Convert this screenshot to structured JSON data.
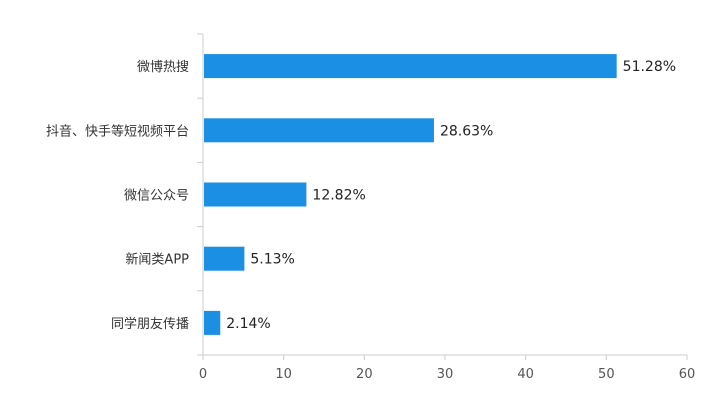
{
  "chart_data": {
    "type": "bar",
    "orientation": "horizontal",
    "title": "",
    "xlabel": "",
    "ylabel": "",
    "categories": [
      "微博热搜",
      "抖音、快手等短视频平台",
      "微信公众号",
      "新闻类APP",
      "同学朋友传播"
    ],
    "values": [
      51.28,
      28.63,
      12.82,
      5.13,
      2.14
    ],
    "value_labels": [
      "51.28%",
      "28.63%",
      "12.82%",
      "5.13%",
      "2.14%"
    ],
    "xlim": [
      0,
      60
    ],
    "xticks": [
      "0",
      "10",
      "20",
      "30",
      "40",
      "50",
      "60"
    ],
    "grid": false,
    "legend": "none",
    "bar_color": "#1a8fe3",
    "axis_color": "#cccccc"
  }
}
